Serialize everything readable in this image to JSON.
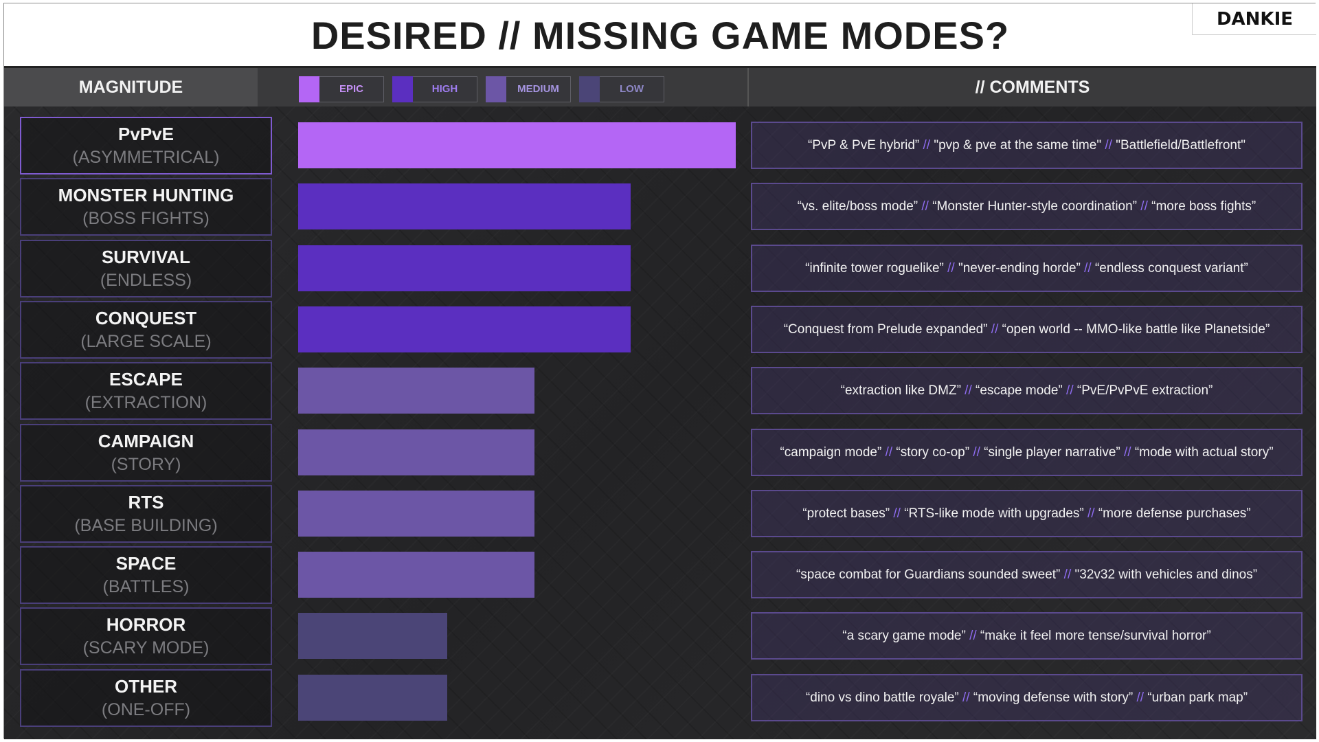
{
  "title": "DESIRED // MISSING GAME MODES?",
  "logo": "DANKIE",
  "header": {
    "magnitude": "MAGNITUDE",
    "comments": "// COMMENTS"
  },
  "colors": {
    "epic": "#b466f5",
    "high": "#5b2fc0",
    "medium": "#6c56a6",
    "low": "#4b4577"
  },
  "legend": [
    {
      "level": "epic",
      "label": "EPIC",
      "swatch": "#b466f5",
      "text_color": "#c691f7"
    },
    {
      "level": "high",
      "label": "HIGH",
      "swatch": "#5b2fc0",
      "text_color": "#9f7df0"
    },
    {
      "level": "medium",
      "label": "MEDIUM",
      "swatch": "#6c56a6",
      "text_color": "#a594e0"
    },
    {
      "level": "low",
      "label": "LOW",
      "swatch": "#4b4577",
      "text_color": "#8f88c8"
    }
  ],
  "chart_data": {
    "type": "bar",
    "orientation": "horizontal",
    "categories": [
      {
        "name": "PvPvE",
        "sub": "(ASYMMETRICAL)"
      },
      {
        "name": "MONSTER HUNTING",
        "sub": "(BOSS FIGHTS)"
      },
      {
        "name": "SURVIVAL",
        "sub": "(ENDLESS)"
      },
      {
        "name": "CONQUEST",
        "sub": "(LARGE SCALE)"
      },
      {
        "name": "ESCAPE",
        "sub": "(EXTRACTION)"
      },
      {
        "name": "CAMPAIGN",
        "sub": "(STORY)"
      },
      {
        "name": "RTS",
        "sub": "(BASE BUILDING)"
      },
      {
        "name": "SPACE",
        "sub": "(BATTLES)"
      },
      {
        "name": "HORROR",
        "sub": "(SCARY MODE)"
      },
      {
        "name": "OTHER",
        "sub": "(ONE-OFF)"
      }
    ],
    "values": [
      1.0,
      0.76,
      0.76,
      0.76,
      0.54,
      0.54,
      0.54,
      0.54,
      0.34,
      0.34
    ],
    "levels": [
      "epic",
      "high",
      "high",
      "high",
      "medium",
      "medium",
      "medium",
      "medium",
      "low",
      "low"
    ],
    "comments": [
      [
        "“PvP & PvE hybrid”",
        "\"pvp & pve at the same time\"",
        "\"Battlefield/Battlefront\""
      ],
      [
        "“vs. elite/boss mode”",
        "“Monster Hunter-style coordination”",
        "“more boss fights”"
      ],
      [
        "“infinite tower roguelike”",
        "\"never-ending horde”",
        "“endless conquest variant”"
      ],
      [
        "“Conquest from Prelude expanded”",
        "“open world -- MMO-like battle like Planetside”"
      ],
      [
        "“extraction like DMZ”",
        "“escape mode”",
        "“PvE/PvPvE extraction”"
      ],
      [
        "“campaign mode”",
        "“story co-op”",
        "“single player narrative”",
        "“mode with actual story”"
      ],
      [
        "“protect bases”",
        "“RTS-like mode with upgrades”",
        "“more defense purchases”"
      ],
      [
        "“space combat for Guardians sounded sweet”",
        "\"32v32 with vehicles and dinos”"
      ],
      [
        "“a scary game mode”",
        "“make it feel more tense/survival horror”"
      ],
      [
        "“dino vs dino battle royale”",
        "“moving defense with story”",
        "“urban park map”"
      ]
    ],
    "comment_separator": "//",
    "title": "DESIRED // MISSING GAME MODES?",
    "xlabel": "MAGNITUDE"
  }
}
